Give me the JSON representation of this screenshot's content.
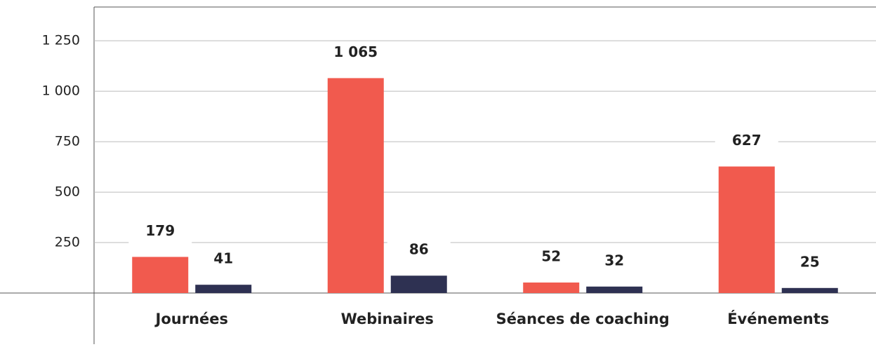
{
  "chart_data": {
    "type": "bar",
    "categories": [
      "Journées",
      "Webinaires",
      "Séances de coaching",
      "Événements"
    ],
    "series": [
      {
        "color": "#f15a4e",
        "values": [
          179,
          1065,
          52,
          627
        ],
        "value_labels": [
          "179",
          "1 065",
          "52",
          "627"
        ]
      },
      {
        "color": "#2e3152",
        "values": [
          41,
          86,
          32,
          25
        ]
      }
    ],
    "ylim": [
      0,
      1400
    ],
    "yticks": [
      250,
      500,
      750,
      {
        "value": 1000,
        "label": "1 000"
      },
      {
        "value": 1250,
        "label": "1 250"
      }
    ],
    "grid": true
  }
}
